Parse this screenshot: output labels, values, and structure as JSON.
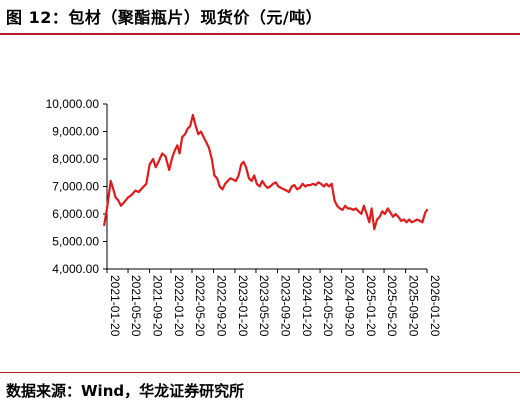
{
  "title": "图 12：包材（聚酯瓶片）现货价（元/吨）",
  "source": "数据来源：Wind，华龙证券研究所",
  "colors": {
    "series": "#e01b1b",
    "accent_rule": "#b11e23",
    "axis": "#000000"
  },
  "chart_data": {
    "type": "line",
    "title": "",
    "xlabel": "",
    "ylabel": "",
    "ylim": [
      4000,
      10000
    ],
    "y_ticks": [
      "4,000.00",
      "5,000.00",
      "6,000.00",
      "7,000.00",
      "8,000.00",
      "9,000.00",
      "10,000.00"
    ],
    "y_tick_values": [
      4000,
      5000,
      6000,
      7000,
      8000,
      9000,
      10000
    ],
    "x_range": [
      "2021-01-20",
      "2026-01-20"
    ],
    "x_ticks": [
      "2021-01-20",
      "2021-05-20",
      "2021-09-20",
      "2022-01-20",
      "2022-05-20",
      "2022-09-20",
      "2023-01-20",
      "2023-05-20",
      "2023-09-20",
      "2024-01-20",
      "2024-05-20",
      "2024-09-20",
      "2025-01-20",
      "2025-05-20",
      "2025-09-20",
      "2026-01-20"
    ],
    "grid": false,
    "series": [
      {
        "x": [
          "2021-01-04",
          "2021-01-20",
          "2021-02-10",
          "2021-02-25",
          "2021-03-10",
          "2021-03-25",
          "2021-04-10",
          "2021-05-01",
          "2021-05-20",
          "2021-06-10",
          "2021-07-01",
          "2021-07-20",
          "2021-08-10",
          "2021-09-01",
          "2021-09-20",
          "2021-10-10",
          "2021-10-25",
          "2021-11-10",
          "2021-12-01",
          "2021-12-20",
          "2022-01-10",
          "2022-01-25",
          "2022-02-10",
          "2022-02-25",
          "2022-03-10",
          "2022-03-25",
          "2022-04-10",
          "2022-04-25",
          "2022-05-10",
          "2022-05-25",
          "2022-06-10",
          "2022-06-25",
          "2022-07-10",
          "2022-07-25",
          "2022-08-10",
          "2022-08-25",
          "2022-09-10",
          "2022-09-25",
          "2022-10-10",
          "2022-10-25",
          "2022-11-10",
          "2022-11-25",
          "2022-12-10",
          "2022-12-25",
          "2023-01-10",
          "2023-01-25",
          "2023-02-10",
          "2023-02-25",
          "2023-03-10",
          "2023-03-25",
          "2023-04-10",
          "2023-04-25",
          "2023-05-10",
          "2023-05-25",
          "2023-06-10",
          "2023-06-25",
          "2023-07-10",
          "2023-07-25",
          "2023-08-10",
          "2023-08-25",
          "2023-09-10",
          "2023-09-25",
          "2023-10-10",
          "2023-10-25",
          "2023-11-10",
          "2023-11-25",
          "2023-12-10",
          "2023-12-25",
          "2024-01-10",
          "2024-01-25",
          "2024-02-10",
          "2024-02-25",
          "2024-03-10",
          "2024-03-25",
          "2024-04-10",
          "2024-04-25",
          "2024-05-10",
          "2024-05-25",
          "2024-06-10",
          "2024-06-25",
          "2024-07-10",
          "2024-07-25",
          "2024-08-10",
          "2024-08-25",
          "2024-09-10",
          "2024-09-25",
          "2024-10-10",
          "2024-10-25",
          "2024-11-10",
          "2024-11-25",
          "2024-12-10",
          "2024-12-25",
          "2025-01-10",
          "2025-01-25",
          "2025-02-10",
          "2025-02-25",
          "2025-03-10",
          "2025-03-25",
          "2025-04-10",
          "2025-04-25",
          "2025-05-10",
          "2025-05-25",
          "2025-06-10",
          "2025-06-25",
          "2025-07-10",
          "2025-07-25",
          "2025-08-10",
          "2025-08-25",
          "2025-09-10",
          "2025-09-25",
          "2025-10-10",
          "2025-10-25",
          "2025-11-10",
          "2025-11-25",
          "2025-12-10",
          "2025-12-25",
          "2026-01-10",
          "2026-01-20"
        ],
        "values": [
          5600,
          6200,
          7200,
          6900,
          6600,
          6500,
          6300,
          6450,
          6600,
          6700,
          6850,
          6800,
          6950,
          7100,
          7800,
          8000,
          7700,
          7900,
          8200,
          8100,
          7600,
          8000,
          8300,
          8500,
          8200,
          8800,
          8900,
          9100,
          9200,
          9600,
          9200,
          8900,
          9000,
          8800,
          8600,
          8400,
          8000,
          7400,
          7300,
          7000,
          6900,
          7100,
          7200,
          7300,
          7250,
          7200,
          7400,
          7800,
          7900,
          7700,
          7300,
          7200,
          7400,
          7100,
          7000,
          7200,
          7050,
          6950,
          7000,
          7100,
          7150,
          7000,
          6950,
          6900,
          6850,
          6800,
          7000,
          7050,
          6900,
          6950,
          7100,
          7000,
          7050,
          7050,
          7100,
          7050,
          7150,
          7100,
          7000,
          7100,
          7000,
          7100,
          6500,
          6300,
          6200,
          6150,
          6300,
          6200,
          6200,
          6150,
          6200,
          6100,
          6000,
          6300,
          6000,
          5700,
          6200,
          5450,
          5800,
          5900,
          6100,
          6000,
          6200,
          6050,
          5900,
          6000,
          5900,
          5750,
          5800,
          5700,
          5800,
          5700,
          5750,
          5800,
          5750,
          5700,
          6050,
          6150
        ]
      }
    ]
  }
}
